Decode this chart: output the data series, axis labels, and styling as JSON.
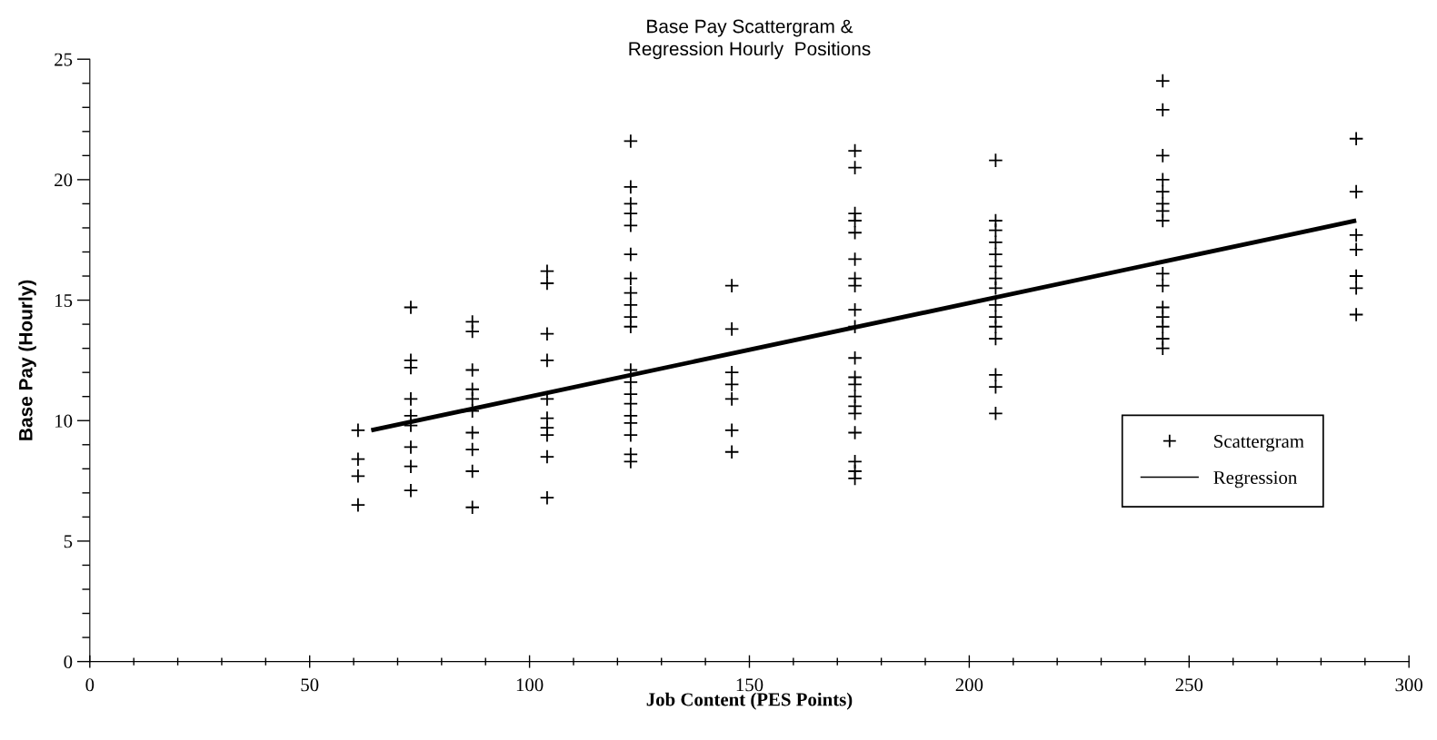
{
  "chart_data": {
    "type": "scatter",
    "title": "Base Pay Scattergram &\nRegression Hourly  Positions",
    "xlabel": "Job Content (PES Points)",
    "ylabel": "Base Pay (Hourly)",
    "xlim": [
      0,
      300
    ],
    "ylim": [
      0,
      25
    ],
    "xticks": [
      0,
      {
        "value": 10,
        "label": null
      },
      {
        "value": 20,
        "label": null
      },
      {
        "value": 30,
        "label": null
      },
      {
        "value": 40,
        "label": null
      },
      50,
      {
        "value": 60,
        "label": null
      },
      {
        "value": 70,
        "label": null
      },
      {
        "value": 80,
        "label": null
      },
      {
        "value": 90,
        "label": null
      },
      100,
      {
        "value": 110,
        "label": null
      },
      {
        "value": 120,
        "label": null
      },
      {
        "value": 130,
        "label": null
      },
      {
        "value": 140,
        "label": null
      },
      150,
      {
        "value": 160,
        "label": null
      },
      {
        "value": 170,
        "label": null
      },
      {
        "value": 180,
        "label": null
      },
      {
        "value": 190,
        "label": null
      },
      200,
      {
        "value": 210,
        "label": null
      },
      {
        "value": 220,
        "label": null
      },
      {
        "value": 230,
        "label": null
      },
      {
        "value": 240,
        "label": null
      },
      250,
      {
        "value": 260,
        "label": null
      },
      {
        "value": 270,
        "label": null
      },
      {
        "value": 280,
        "label": null
      },
      {
        "value": 290,
        "label": null
      },
      300
    ],
    "yticks": [
      0,
      {
        "value": 1,
        "label": null
      },
      {
        "value": 2,
        "label": null
      },
      {
        "value": 3,
        "label": null
      },
      {
        "value": 4,
        "label": null
      },
      5,
      {
        "value": 6,
        "label": null
      },
      {
        "value": 7,
        "label": null
      },
      {
        "value": 8,
        "label": null
      },
      {
        "value": 9,
        "label": null
      },
      10,
      {
        "value": 11,
        "label": null
      },
      {
        "value": 12,
        "label": null
      },
      {
        "value": 13,
        "label": null
      },
      {
        "value": 14,
        "label": null
      },
      15,
      {
        "value": 16,
        "label": null
      },
      {
        "value": 17,
        "label": null
      },
      {
        "value": 18,
        "label": null
      },
      {
        "value": 19,
        "label": null
      },
      20,
      {
        "value": 21,
        "label": null
      },
      {
        "value": 22,
        "label": null
      },
      {
        "value": 23,
        "label": null
      },
      {
        "value": 24,
        "label": null
      },
      25
    ],
    "grid": false,
    "legend": "right",
    "marker": "cross",
    "series": [
      {
        "name": "Scattergram",
        "color": "#000000",
        "x": [
          61,
          61,
          61,
          61,
          73,
          73,
          73,
          73,
          73,
          73,
          73,
          73,
          73,
          87,
          87,
          87,
          87,
          87,
          87,
          87,
          87,
          87,
          87,
          104,
          104,
          104,
          104,
          104,
          104,
          104,
          104,
          104,
          104,
          123,
          123,
          123,
          123,
          123,
          123,
          123,
          123,
          123,
          123,
          123,
          123,
          123,
          123,
          123,
          123,
          123,
          123,
          123,
          123,
          146,
          146,
          146,
          146,
          146,
          146,
          146,
          174,
          174,
          174,
          174,
          174,
          174,
          174,
          174,
          174,
          174,
          174,
          174,
          174,
          174,
          174,
          174,
          174,
          174,
          174,
          174,
          206,
          206,
          206,
          206,
          206,
          206,
          206,
          206,
          206,
          206,
          206,
          206,
          206,
          206,
          206,
          244,
          244,
          244,
          244,
          244,
          244,
          244,
          244,
          244,
          244,
          244,
          244,
          244,
          244,
          244,
          288,
          288,
          288,
          288,
          288,
          288,
          288
        ],
        "values": [
          9.6,
          8.4,
          7.7,
          6.5,
          14.7,
          12.5,
          12.2,
          10.9,
          10.2,
          9.8,
          8.9,
          8.1,
          7.1,
          14.1,
          13.7,
          12.1,
          11.3,
          10.9,
          10.4,
          9.5,
          8.8,
          7.9,
          6.4,
          16.2,
          15.7,
          13.6,
          12.5,
          10.9,
          10.1,
          9.7,
          9.4,
          8.5,
          6.8,
          21.6,
          19.7,
          19.0,
          18.6,
          18.1,
          16.9,
          15.9,
          15.3,
          14.8,
          14.3,
          13.9,
          12.1,
          11.6,
          11.1,
          10.7,
          10.2,
          9.9,
          9.4,
          8.6,
          8.3,
          15.6,
          13.8,
          12.0,
          11.5,
          10.9,
          9.6,
          8.7,
          21.2,
          20.5,
          18.6,
          18.3,
          17.8,
          16.7,
          15.9,
          15.6,
          14.6,
          13.9,
          12.6,
          11.8,
          11.5,
          11.0,
          10.6,
          10.3,
          9.5,
          8.3,
          7.9,
          7.6,
          20.8,
          18.3,
          17.9,
          17.4,
          16.9,
          16.4,
          15.9,
          15.5,
          14.8,
          14.3,
          13.9,
          13.4,
          11.9,
          11.4,
          10.3,
          24.1,
          22.9,
          21.0,
          20.0,
          19.5,
          19.0,
          18.7,
          18.3,
          16.1,
          15.6,
          14.7,
          14.3,
          13.9,
          13.4,
          13.0,
          21.7,
          19.5,
          17.7,
          17.1,
          16.0,
          15.5,
          14.4
        ]
      },
      {
        "name": "Regression",
        "type": "line",
        "color": "#000000",
        "line_style": "solid",
        "marker": "none",
        "x": [
          64,
          288
        ],
        "values": [
          9.6,
          18.3
        ]
      }
    ]
  }
}
